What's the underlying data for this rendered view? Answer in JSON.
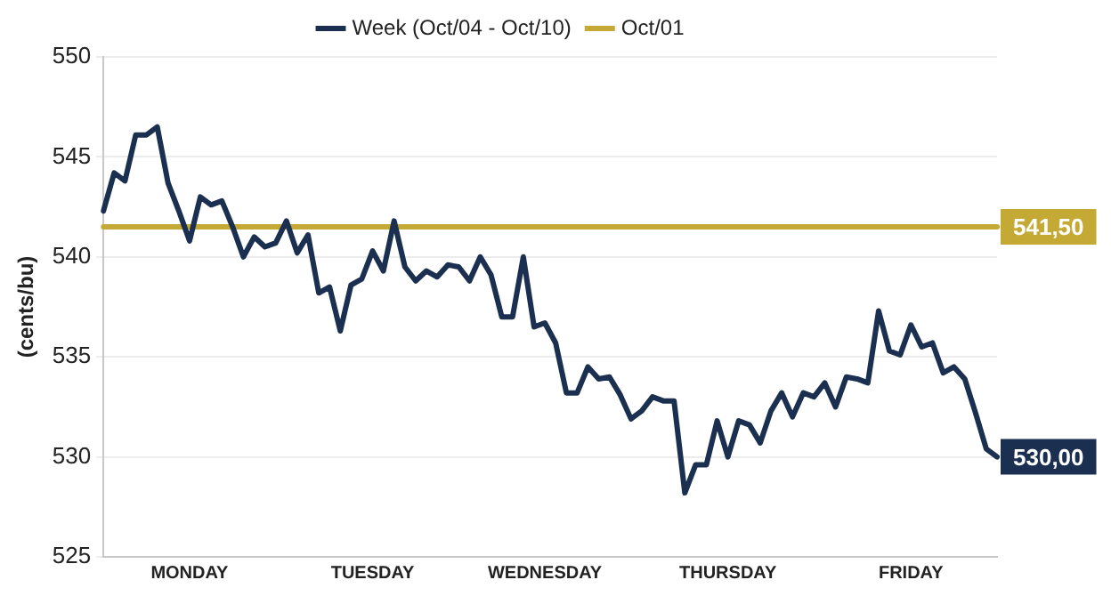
{
  "chart_data": {
    "type": "line",
    "ylabel": "(cents/bu)",
    "categories": [
      null,
      null,
      null,
      null,
      null,
      null,
      null,
      null,
      "MONDAY",
      null,
      null,
      null,
      null,
      null,
      null,
      null,
      null,
      null,
      null,
      null,
      null,
      null,
      null,
      null,
      null,
      "TUESDAY",
      null,
      null,
      null,
      null,
      null,
      null,
      null,
      null,
      null,
      null,
      null,
      null,
      null,
      null,
      null,
      "WEDNESDAY",
      null,
      null,
      null,
      null,
      null,
      null,
      null,
      null,
      null,
      null,
      null,
      null,
      null,
      null,
      null,
      null,
      "THURSDAY",
      null,
      null,
      null,
      null,
      null,
      null,
      null,
      null,
      null,
      null,
      null,
      null,
      null,
      null,
      null,
      null,
      "FRIDAY",
      null,
      null,
      null,
      null,
      null,
      null,
      null,
      null
    ],
    "ylim": [
      525,
      550
    ],
    "yticks": [
      525,
      530,
      535,
      540,
      545,
      550
    ],
    "grid": "y",
    "legend": "top",
    "series": [
      {
        "name": "Week (Oct/04 - Oct/10)",
        "color": "#1b3050",
        "values": [
          542.3,
          544.2,
          543.8,
          546.1,
          546.1,
          546.5,
          543.7,
          542.3,
          540.8,
          543.0,
          542.6,
          542.8,
          541.5,
          540.0,
          541.0,
          540.5,
          540.7,
          541.8,
          540.2,
          541.1,
          538.2,
          538.5,
          536.3,
          538.6,
          538.9,
          540.3,
          539.3,
          541.8,
          539.5,
          538.8,
          539.3,
          539.0,
          539.6,
          539.5,
          538.8,
          540.0,
          539.1,
          537.0,
          537.0,
          540.0,
          536.5,
          536.7,
          535.7,
          533.2,
          533.2,
          534.5,
          533.9,
          534.0,
          533.1,
          531.9,
          532.3,
          533.0,
          532.8,
          532.8,
          528.2,
          529.6,
          529.6,
          531.8,
          530.0,
          531.8,
          531.6,
          530.7,
          532.3,
          533.2,
          532.0,
          533.2,
          533.0,
          533.7,
          532.5,
          534.0,
          533.9,
          533.7,
          537.3,
          535.3,
          535.1,
          536.6,
          535.5,
          535.7,
          534.2,
          534.5,
          533.9,
          532.2,
          530.4,
          530.0
        ],
        "value_labels": [
          null,
          null,
          null,
          null,
          null,
          null,
          null,
          null,
          null,
          null,
          null,
          null,
          null,
          null,
          null,
          null,
          null,
          null,
          null,
          null,
          null,
          null,
          null,
          null,
          null,
          null,
          null,
          null,
          null,
          null,
          null,
          null,
          null,
          null,
          null,
          null,
          null,
          null,
          null,
          null,
          null,
          null,
          null,
          null,
          null,
          null,
          null,
          null,
          null,
          null,
          null,
          null,
          null,
          null,
          null,
          null,
          null,
          null,
          null,
          null,
          null,
          null,
          null,
          null,
          null,
          null,
          null,
          null,
          null,
          null,
          null,
          null,
          null,
          null,
          null,
          null,
          null,
          null,
          null,
          null,
          null,
          null,
          null,
          "530,00"
        ]
      },
      {
        "name": "Oct/01",
        "color": "#c4aa35",
        "values": [
          541.5,
          541.5,
          541.5,
          541.5,
          541.5,
          541.5,
          541.5,
          541.5,
          541.5,
          541.5,
          541.5,
          541.5,
          541.5,
          541.5,
          541.5,
          541.5,
          541.5,
          541.5,
          541.5,
          541.5,
          541.5,
          541.5,
          541.5,
          541.5,
          541.5,
          541.5,
          541.5,
          541.5,
          541.5,
          541.5,
          541.5,
          541.5,
          541.5,
          541.5,
          541.5,
          541.5,
          541.5,
          541.5,
          541.5,
          541.5,
          541.5,
          541.5,
          541.5,
          541.5,
          541.5,
          541.5,
          541.5,
          541.5,
          541.5,
          541.5,
          541.5,
          541.5,
          541.5,
          541.5,
          541.5,
          541.5,
          541.5,
          541.5,
          541.5,
          541.5,
          541.5,
          541.5,
          541.5,
          541.5,
          541.5,
          541.5,
          541.5,
          541.5,
          541.5,
          541.5,
          541.5,
          541.5,
          541.5,
          541.5,
          541.5,
          541.5,
          541.5,
          541.5,
          541.5,
          541.5,
          541.5,
          541.5,
          541.5,
          541.5
        ],
        "value_labels": [
          null,
          null,
          null,
          null,
          null,
          null,
          null,
          null,
          null,
          null,
          null,
          null,
          null,
          null,
          null,
          null,
          null,
          null,
          null,
          null,
          null,
          null,
          null,
          null,
          null,
          null,
          null,
          null,
          null,
          null,
          null,
          null,
          null,
          null,
          null,
          null,
          null,
          null,
          null,
          null,
          null,
          null,
          null,
          null,
          null,
          null,
          null,
          null,
          null,
          null,
          null,
          null,
          null,
          null,
          null,
          null,
          null,
          null,
          null,
          null,
          null,
          null,
          null,
          null,
          null,
          null,
          null,
          null,
          null,
          null,
          null,
          null,
          null,
          null,
          null,
          null,
          null,
          null,
          null,
          null,
          null,
          null,
          null,
          "541,50"
        ]
      }
    ]
  }
}
